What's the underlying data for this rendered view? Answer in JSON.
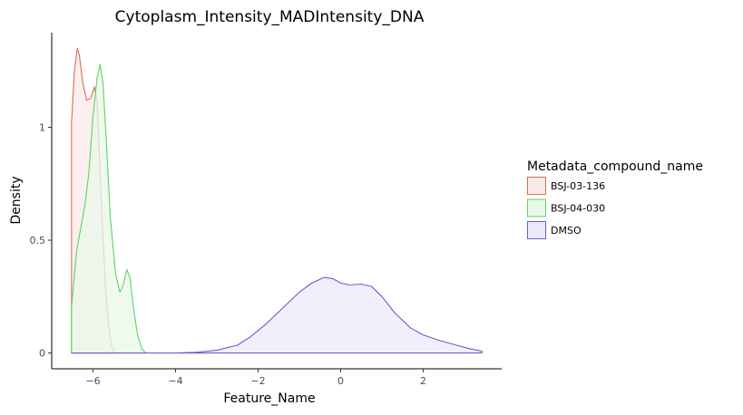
{
  "chart_data": {
    "type": "area",
    "title": "Cytoplasm_Intensity_MADIntensity_DNA",
    "xlabel": "Feature_Name",
    "ylabel": "Density",
    "xlim": [
      -7.0,
      3.9
    ],
    "ylim": [
      -0.07,
      1.42
    ],
    "x_ticks": [
      -6,
      -4,
      -2,
      0,
      2
    ],
    "x_tick_labels": [
      "−6",
      "−4",
      "−2",
      "0",
      "2"
    ],
    "y_ticks": [
      0,
      0.5,
      1
    ],
    "y_tick_labels": [
      "0",
      "0.5",
      "1"
    ],
    "grid": false,
    "legend": {
      "title": "Metadata_compound_name",
      "position": "right"
    },
    "series": [
      {
        "name": "BSJ-03-136",
        "line_color": "#e06b5a",
        "fill_color": "#fbeaea",
        "points": [
          [
            -6.52,
            0
          ],
          [
            -6.52,
            1.02
          ],
          [
            -6.45,
            1.25
          ],
          [
            -6.38,
            1.35
          ],
          [
            -6.33,
            1.32
          ],
          [
            -6.25,
            1.2
          ],
          [
            -6.15,
            1.12
          ],
          [
            -6.05,
            1.13
          ],
          [
            -5.97,
            1.18
          ],
          [
            -5.9,
            1.12
          ],
          [
            -5.85,
            0.9
          ],
          [
            -5.78,
            0.6
          ],
          [
            -5.7,
            0.3
          ],
          [
            -5.62,
            0.12
          ],
          [
            -5.55,
            0.03
          ],
          [
            -5.48,
            0.0
          ]
        ]
      },
      {
        "name": "BSJ-04-030",
        "line_color": "#5fd35f",
        "fill_color": "#eaf8ea",
        "points": [
          [
            -6.52,
            0
          ],
          [
            -6.52,
            0.2
          ],
          [
            -6.4,
            0.45
          ],
          [
            -6.3,
            0.55
          ],
          [
            -6.2,
            0.65
          ],
          [
            -6.1,
            0.8
          ],
          [
            -6.0,
            1.05
          ],
          [
            -5.9,
            1.22
          ],
          [
            -5.83,
            1.28
          ],
          [
            -5.76,
            1.2
          ],
          [
            -5.68,
            0.95
          ],
          [
            -5.58,
            0.6
          ],
          [
            -5.45,
            0.35
          ],
          [
            -5.35,
            0.27
          ],
          [
            -5.27,
            0.3
          ],
          [
            -5.18,
            0.37
          ],
          [
            -5.1,
            0.33
          ],
          [
            -5.02,
            0.2
          ],
          [
            -4.92,
            0.08
          ],
          [
            -4.82,
            0.02
          ],
          [
            -4.72,
            0.0
          ]
        ]
      },
      {
        "name": "DMSO",
        "line_color": "#6a5ed1",
        "fill_color": "#ebeaf9",
        "points": [
          [
            -6.52,
            0
          ],
          [
            -4.0,
            0.0
          ],
          [
            -3.5,
            0.003
          ],
          [
            -3.0,
            0.012
          ],
          [
            -2.5,
            0.035
          ],
          [
            -2.2,
            0.07
          ],
          [
            -1.8,
            0.13
          ],
          [
            -1.4,
            0.2
          ],
          [
            -1.0,
            0.27
          ],
          [
            -0.7,
            0.31
          ],
          [
            -0.4,
            0.335
          ],
          [
            -0.2,
            0.33
          ],
          [
            0.0,
            0.31
          ],
          [
            0.2,
            0.302
          ],
          [
            0.5,
            0.305
          ],
          [
            0.75,
            0.295
          ],
          [
            1.0,
            0.25
          ],
          [
            1.3,
            0.18
          ],
          [
            1.7,
            0.11
          ],
          [
            2.0,
            0.08
          ],
          [
            2.4,
            0.055
          ],
          [
            2.8,
            0.035
          ],
          [
            3.1,
            0.02
          ],
          [
            3.42,
            0.008
          ]
        ]
      }
    ]
  }
}
